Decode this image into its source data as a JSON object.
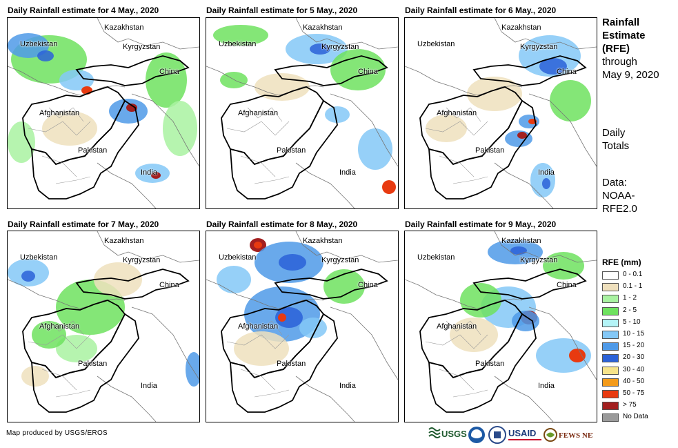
{
  "panels": [
    {
      "title": "Daily Rainfall estimate for 4 May., 2020",
      "labels": {
        "kazakhstan": "Kazakhstan",
        "uzbekistan": "Uzbekistan",
        "kyrgyzstan": "Kyrgyzstan",
        "china": "China",
        "afghanistan": "Afghanistan",
        "pakistan": "Pakistan",
        "india": "India"
      }
    },
    {
      "title": "Daily Rainfall estimate for 5 May., 2020",
      "labels": {
        "kazakhstan": "Kazakhstan",
        "uzbekistan": "Uzbekistan",
        "kyrgyzstan": "Kyrgyzstan",
        "china": "China",
        "afghanistan": "Afghanistan",
        "pakistan": "Pakistan",
        "india": "India"
      }
    },
    {
      "title": "Daily Rainfall estimate for 6 May., 2020",
      "labels": {
        "kazakhstan": "Kazakhstan",
        "uzbekistan": "Uzbekistan",
        "kyrgyzstan": "Kyrgyzstan",
        "china": "China",
        "afghanistan": "Afghanistan",
        "pakistan": "Pakistan",
        "india": "India"
      }
    },
    {
      "title": "Daily Rainfall estimate for 7 May., 2020",
      "labels": {
        "kazakhstan": "Kazakhstan",
        "uzbekistan": "Uzbekistan",
        "kyrgyzstan": "Kyrgyzstan",
        "china": "China",
        "afghanistan": "Afghanistan",
        "pakistan": "Pakistan",
        "india": "India"
      }
    },
    {
      "title": "Daily Rainfall estimate for 8 May., 2020",
      "labels": {
        "kazakhstan": "Kazakhstan",
        "uzbekistan": "Uzbekistan",
        "kyrgyzstan": "Kyrgyzstan",
        "china": "China",
        "afghanistan": "Afghanistan",
        "pakistan": "Pakistan",
        "india": "India"
      }
    },
    {
      "title": "Daily Rainfall estimate for 9 May., 2020",
      "labels": {
        "kazakhstan": "Kazakhstan",
        "uzbekistan": "Uzbekistan",
        "kyrgyzstan": "Kyrgyzstan",
        "china": "China",
        "afghanistan": "Afghanistan",
        "pakistan": "Pakistan",
        "india": "India"
      }
    }
  ],
  "sidebar": {
    "title_bold_1": "Rainfall",
    "title_bold_2": "Estimate",
    "title_bold_3": "(RFE)",
    "title_line_4": "through",
    "title_line_5": "May 9, 2020",
    "totals_1": "Daily",
    "totals_2": "Totals",
    "data_1": "Data:",
    "data_2": "NOAA-",
    "data_3": "RFE2.0"
  },
  "legend": {
    "title": "RFE (mm)",
    "items": [
      {
        "label": "0 - 0.1",
        "color": "#ffffff"
      },
      {
        "label": "0.1 - 1",
        "color": "#efe0bd"
      },
      {
        "label": "1 - 2",
        "color": "#a9f2a1"
      },
      {
        "label": "2 - 5",
        "color": "#6ee25f"
      },
      {
        "label": "5 - 10",
        "color": "#b4f4f7"
      },
      {
        "label": "10 - 15",
        "color": "#84c8f7"
      },
      {
        "label": "15 - 20",
        "color": "#4f9ae8"
      },
      {
        "label": "20 - 30",
        "color": "#2c62d8"
      },
      {
        "label": "30 - 40",
        "color": "#f6e38a"
      },
      {
        "label": "40 - 50",
        "color": "#f49b1a"
      },
      {
        "label": "50 - 75",
        "color": "#e83a10"
      },
      {
        "label": "> 75",
        "color": "#a32020"
      },
      {
        "label": "No Data",
        "color": "#9a9a9a"
      }
    ]
  },
  "footer": {
    "credit": "Map produced by USGS/EROS",
    "logo_usgs": "USGS",
    "logo_usaid": "USAID",
    "logo_fewsnet": "FEWS NET"
  }
}
